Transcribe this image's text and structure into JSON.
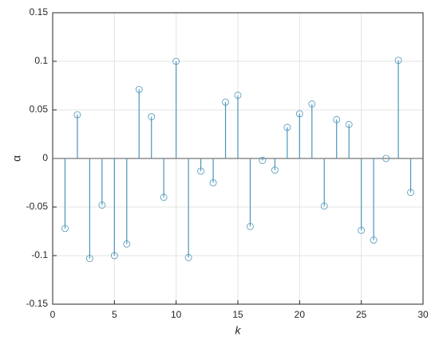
{
  "chart_data": {
    "type": "stem",
    "xlabel": "k",
    "ylabel": "α",
    "x": [
      1,
      2,
      3,
      4,
      5,
      6,
      7,
      8,
      9,
      10,
      11,
      12,
      13,
      14,
      15,
      16,
      17,
      18,
      19,
      20,
      21,
      22,
      23,
      24,
      25,
      26,
      27,
      28,
      29
    ],
    "values": [
      -0.072,
      0.045,
      -0.103,
      -0.048,
      -0.1,
      -0.088,
      0.071,
      0.043,
      -0.04,
      0.1,
      -0.102,
      -0.013,
      -0.025,
      0.058,
      0.065,
      -0.07,
      -0.002,
      -0.012,
      0.032,
      0.046,
      0.056,
      -0.049,
      0.04,
      0.035,
      -0.074,
      -0.084,
      0.0,
      0.101,
      -0.035
    ],
    "color": "#4b95b8",
    "xlim": [
      0,
      30
    ],
    "xticks": [
      0,
      5,
      10,
      15,
      20,
      25,
      30
    ],
    "ylim": [
      -0.15,
      0.15
    ],
    "yticks": [
      -0.15,
      -0.1,
      -0.05,
      0,
      0.05,
      0.1,
      0.15
    ],
    "grid": true
  }
}
